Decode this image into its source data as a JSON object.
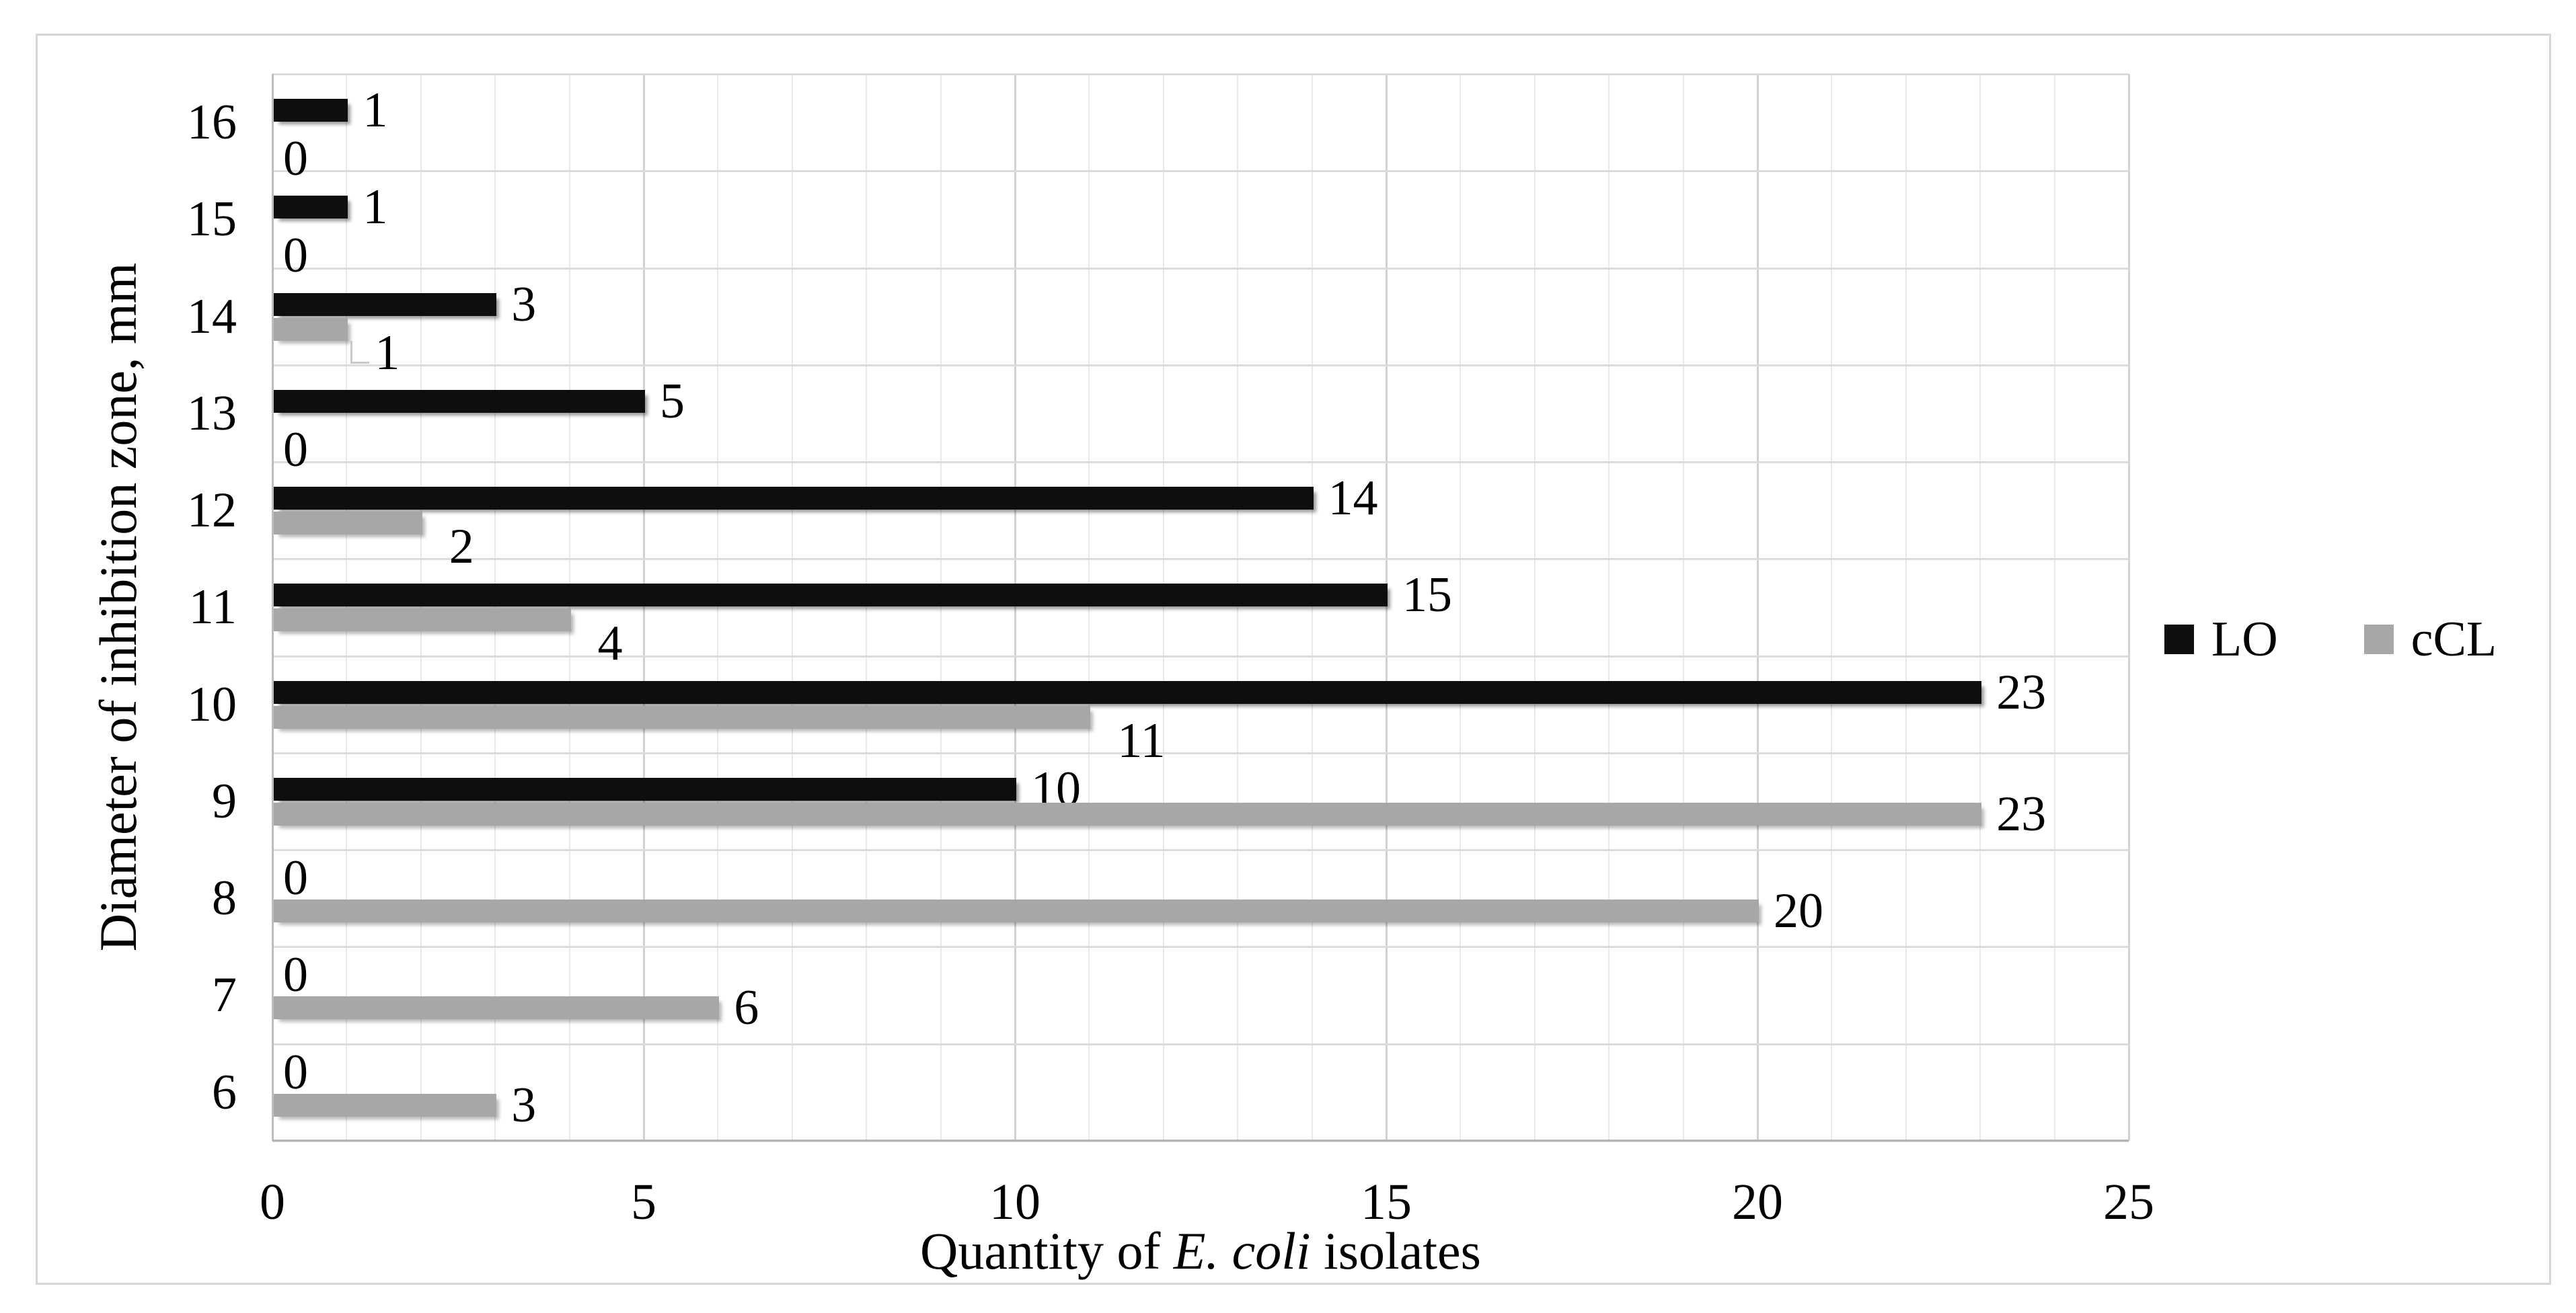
{
  "chart_data": {
    "type": "bar",
    "orientation": "horizontal",
    "title": "",
    "ylabel": "Diameter of inhibition zone, mm",
    "xlabel": {
      "pre": "Quantity of ",
      "italic": "E. coli",
      "post": " isolates"
    },
    "categories": [
      "16",
      "15",
      "14",
      "13",
      "12",
      "11",
      "10",
      "9",
      "8",
      "7",
      "6"
    ],
    "series": [
      {
        "name": "LO",
        "color": "#0e0e0e",
        "values": [
          1,
          1,
          3,
          5,
          14,
          15,
          23,
          10,
          0,
          0,
          0
        ],
        "label_placement": [
          "end",
          "end",
          "end",
          "end",
          "end",
          "end",
          "end",
          "end",
          "end",
          "end",
          "end"
        ]
      },
      {
        "name": "cCL",
        "color": "#a7a7a7",
        "values": [
          0,
          0,
          1,
          0,
          2,
          4,
          11,
          23,
          20,
          6,
          3
        ],
        "label_placement": [
          "below",
          "below",
          "below-leader",
          "below",
          "below",
          "below",
          "below",
          "end",
          "end",
          "end",
          "end"
        ]
      }
    ],
    "data_labels_visible": true,
    "xlim": [
      0,
      25
    ],
    "xticks": [
      "0",
      "5",
      "10",
      "15",
      "20",
      "25"
    ],
    "grid": {
      "vertical_minor_step": 1,
      "vertical_major_step": 5,
      "horizontal_band_lines": true
    },
    "legend": {
      "position": "right",
      "entries": [
        "LO",
        "cCL"
      ]
    }
  }
}
